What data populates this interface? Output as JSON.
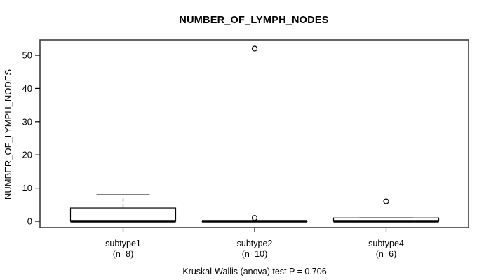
{
  "figure": {
    "title": "NUMBER_OF_LYMPH_NODES",
    "annotation": "Kruskal-Wallis (anova) test P = 0.706"
  },
  "chart_data": {
    "type": "boxplot",
    "title": "NUMBER_OF_LYMPH_NODES",
    "xlabel": "",
    "ylabel": "NUMBER_OF_LYMPH_NODES",
    "ylim": [
      0,
      55
    ],
    "yticks": [
      0,
      10,
      20,
      30,
      40,
      50
    ],
    "grid": false,
    "legend": "none",
    "categories": [
      "subtype1",
      "subtype2",
      "subtype4"
    ],
    "category_sublabels": [
      "(n=8)",
      "(n=10)",
      "(n=6)"
    ],
    "series": [
      {
        "name": "subtype1",
        "n": 8,
        "whisker_low": 0,
        "q1": 0,
        "median": 0,
        "q3": 4,
        "whisker_high": 8,
        "outliers": []
      },
      {
        "name": "subtype2",
        "n": 10,
        "whisker_low": 0,
        "q1": 0,
        "median": 0,
        "q3": 0,
        "whisker_high": 0,
        "outliers": [
          1,
          52
        ]
      },
      {
        "name": "subtype4",
        "n": 6,
        "whisker_low": 0,
        "q1": 0,
        "median": 0,
        "q3": 1,
        "whisker_high": 1,
        "outliers": [
          6
        ]
      }
    ],
    "annotation": "Kruskal-Wallis (anova) test P = 0.706",
    "colors": {
      "box_fill": "#ffffff",
      "box_stroke": "#000000",
      "frame_stroke": "#3d3d3d",
      "text": "#000000"
    }
  }
}
